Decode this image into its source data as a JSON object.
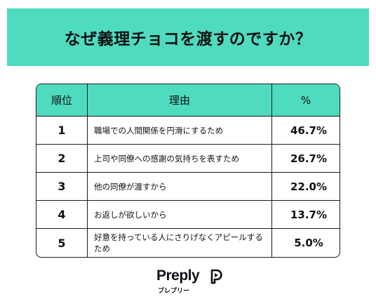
{
  "title": "なぜ義理チョコを渡すのですか？",
  "table": {
    "headers": {
      "rank": "順位",
      "reason": "理由",
      "percent": "%"
    },
    "rows": [
      {
        "rank": "1",
        "reason": "職場での人間関係を円滑にするため",
        "percent": "46.7%"
      },
      {
        "rank": "2",
        "reason": "上司や同僚への感謝の気持ちを表すため",
        "percent": "26.7%"
      },
      {
        "rank": "3",
        "reason": "他の同僚が渡すから",
        "percent": "22.0%"
      },
      {
        "rank": "4",
        "reason": "お返しが欲しいから",
        "percent": "13.7%"
      },
      {
        "rank": "5",
        "reason": "好意を持っている人にさりげなくアピールするため",
        "percent": "5.0%"
      }
    ]
  },
  "brand": {
    "name": "Preply",
    "kana": "プレプリー",
    "icon": "preply-logo-icon",
    "accent_color": "#4fdbc0"
  }
}
